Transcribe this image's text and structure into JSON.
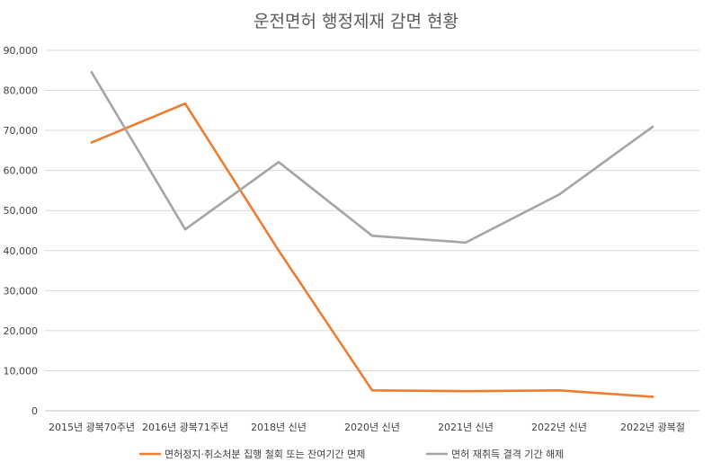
{
  "chart_data": {
    "type": "line",
    "title": "운전면허 행정제재 감면 현황",
    "categories": [
      "2015년 광복70주년",
      "2016년 광복71주년",
      "2018년 신년",
      "2020년 신년",
      "2021년 신년",
      "2022년 신년",
      "2022년 광복절"
    ],
    "series": [
      {
        "name": "면허정지·취소처분 집행 철회 또는 잔여기간 면제",
        "color": "#ED7D31",
        "values": [
          67000,
          76700,
          40000,
          5100,
          4900,
          5100,
          3500
        ]
      },
      {
        "name": "면허 재취득 결격 기간 해제",
        "color": "#A5A5A5",
        "values": [
          84500,
          45300,
          62100,
          43700,
          42000,
          54000,
          70900
        ]
      }
    ],
    "ylim": [
      0,
      90000
    ],
    "yticks": [
      "0",
      "10,000",
      "20,000",
      "30,000",
      "40,000",
      "50,000",
      "60,000",
      "70,000",
      "80,000",
      "90,000"
    ],
    "grid": true,
    "legend": "bottom"
  }
}
